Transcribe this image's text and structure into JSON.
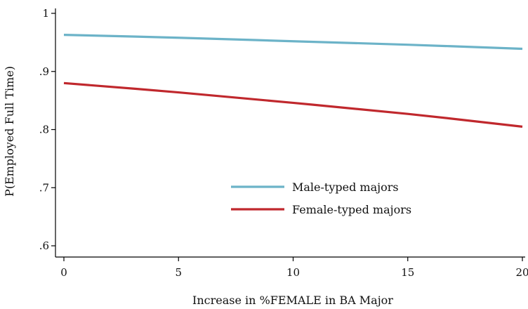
{
  "chart_data": {
    "type": "line",
    "xlabel": "Increase in %FEMALE in BA Major",
    "ylabel": "P(Employed Full Time)",
    "xlim": [
      0,
      20
    ],
    "ylim": [
      0.6,
      1.0
    ],
    "x_ticks": [
      0,
      5,
      10,
      15,
      20
    ],
    "x_tick_labels": [
      "0",
      "5",
      "10",
      "15",
      "20"
    ],
    "y_ticks": [
      0.6,
      0.7,
      0.8,
      0.9,
      1.0
    ],
    "y_tick_labels": [
      ".6",
      ".7",
      ".8",
      ".9",
      "1"
    ],
    "grid": false,
    "legend_position": "lower-center",
    "x": [
      0,
      5,
      10,
      15,
      20
    ],
    "series": [
      {
        "name": "Male-typed majors",
        "color": "#6cb3c8",
        "values": [
          0.963,
          0.958,
          0.952,
          0.946,
          0.939
        ]
      },
      {
        "name": "Female-typed majors",
        "color": "#c0282d",
        "values": [
          0.88,
          0.864,
          0.846,
          0.827,
          0.805
        ]
      }
    ]
  }
}
